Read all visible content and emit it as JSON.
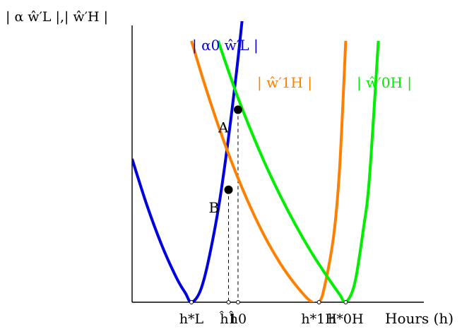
{
  "chart_data": {
    "type": "line",
    "title": "",
    "ylabel": "| α ŵ′L |,| ŵ′H |",
    "xlabel": "Hours (h)",
    "xlim": [
      0,
      10
    ],
    "ylim": [
      0,
      10
    ],
    "grid": false,
    "legend": "none",
    "series": [
      {
        "name": "| α0 ŵ′L |",
        "color": "#0000e0",
        "x": [
          0.0,
          0.5,
          1.0,
          1.5,
          1.8,
          2.0,
          2.3,
          2.6,
          3.0,
          3.5,
          4.0
        ],
        "y": [
          5.1,
          3.45,
          2.03,
          0.86,
          0.32,
          0.0,
          0.41,
          1.61,
          3.95,
          8.02,
          13.0
        ]
      },
      {
        "name": "| ŵ′1H |",
        "color": "#ff8000",
        "x": [
          2.0,
          2.5,
          3.0,
          3.5,
          4.0,
          4.5,
          5.0,
          5.5,
          6.0,
          6.3,
          6.5,
          6.8,
          7.0,
          7.2
        ],
        "y": [
          9.3,
          7.57,
          6.0,
          4.6,
          3.36,
          2.28,
          1.37,
          0.63,
          0.05,
          0.0,
          0.62,
          2.42,
          4.87,
          9.3
        ]
      },
      {
        "name": "| ŵ′0H |",
        "color": "#00ee00",
        "x": [
          2.9,
          3.5,
          4.0,
          4.5,
          5.0,
          5.5,
          6.0,
          6.5,
          7.0,
          7.2,
          7.5,
          7.8,
          8.0,
          8.3
        ],
        "y": [
          9.3,
          7.47,
          6.12,
          4.89,
          3.78,
          2.77,
          1.85,
          1.03,
          0.27,
          0.0,
          0.66,
          2.64,
          4.44,
          9.3
        ]
      }
    ],
    "points": [
      {
        "label": "A",
        "x": 3.57,
        "y": 6.85
      },
      {
        "label": "B",
        "x": 3.25,
        "y": 4.0
      }
    ],
    "ticks": [
      {
        "label": "h*L",
        "x": 2.0
      },
      {
        "label": "ĥ1",
        "x": 3.25
      },
      {
        "label": "ĥ0",
        "x": 3.57
      },
      {
        "label": "h*1H",
        "x": 6.3
      },
      {
        "label": "h*0H",
        "x": 7.2
      }
    ],
    "series_labels": [
      {
        "text": "| α0 ŵ′L |",
        "color": "#0000e0"
      },
      {
        "text": "| ŵ′1H |",
        "color": "#ff8000"
      },
      {
        "text": "| ŵ′0H |",
        "color": "#00ee00"
      }
    ]
  }
}
